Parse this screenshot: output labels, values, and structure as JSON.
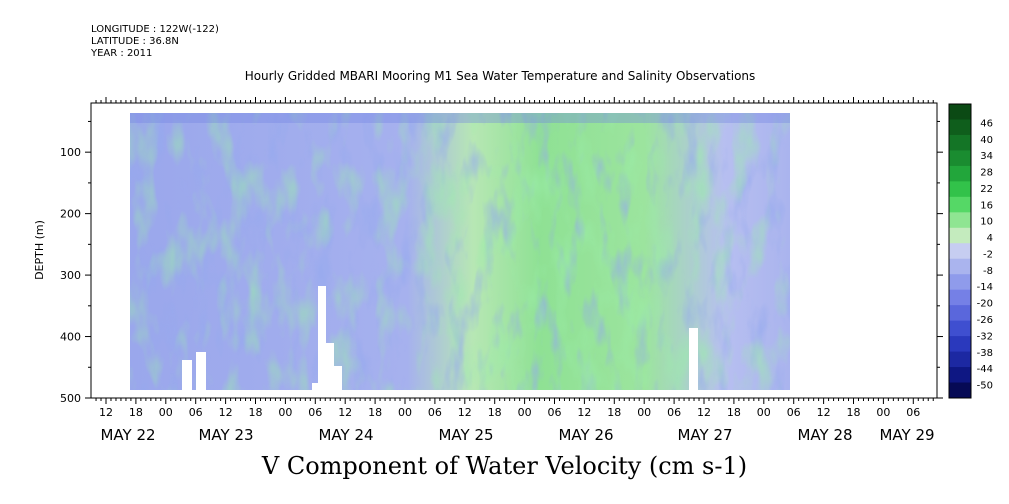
{
  "header": {
    "longitude": "LONGITUDE : 122W(-122)",
    "latitude": "LATITUDE : 36.8N",
    "year": "YEAR : 2011"
  },
  "chart_data": {
    "type": "heatmap",
    "title": "Hourly Gridded MBARI Mooring M1 Sea Water Temperature and Salinity Observations",
    "xlabel": "V Component of Water Velocity (cm s-1)",
    "ylabel": "DEPTH (m)",
    "ylim": [
      500,
      20
    ],
    "y_ticks": [
      100,
      200,
      300,
      400,
      500
    ],
    "y_tick_labels": [
      "100",
      "200",
      "300",
      "400",
      "500"
    ],
    "x_hour_labels": [
      "12",
      "18",
      "00",
      "06",
      "12",
      "18",
      "00",
      "06",
      "12",
      "18",
      "00",
      "06",
      "12",
      "18",
      "00",
      "06",
      "12",
      "18",
      "00",
      "06",
      "12",
      "18",
      "00",
      "06",
      "12",
      "18",
      "00",
      "06"
    ],
    "x_date_labels": [
      "MAY 22",
      "MAY 23",
      "MAY 24",
      "MAY 25",
      "MAY 26",
      "MAY 27",
      "MAY 28",
      "MAY 29"
    ],
    "colorbar": {
      "labels": [
        "46",
        "40",
        "34",
        "28",
        "22",
        "16",
        "10",
        "4",
        "-2",
        "-8",
        "-14",
        "-20",
        "-26",
        "-32",
        "-38",
        "-44",
        "-50"
      ],
      "colors": [
        "#0b4a14",
        "#0f5e1c",
        "#147526",
        "#1a8c30",
        "#22a63b",
        "#32c24a",
        "#55d866",
        "#8fe592",
        "#c4ebbe",
        "#c6cdf1",
        "#aab4ee",
        "#8f9beb",
        "#7580e6",
        "#5a67dc",
        "#3f4fd0",
        "#2a39bd",
        "#1c28a2",
        "#0e1783",
        "#060a55"
      ]
    },
    "data_extent_days": [
      0.5,
      6.0
    ],
    "dominant_pattern": "Mostly weak negative values (light blue) before May 25, transitioning to positive values (green) from May 25 through May 27, returning to negative near May 27 18h"
  }
}
